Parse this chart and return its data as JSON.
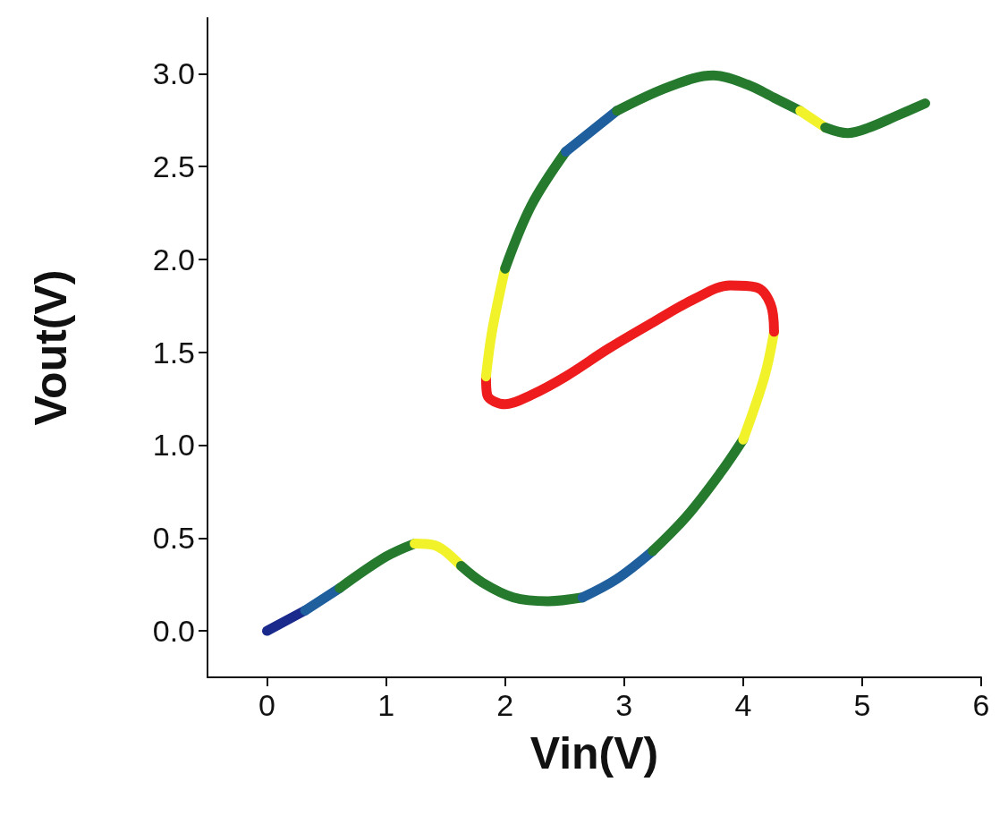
{
  "chart_data": {
    "type": "line",
    "xlabel": "Vin(V)",
    "ylabel": "Vout(V)",
    "xlim": [
      -0.5,
      6
    ],
    "xticks": [
      0,
      1,
      2,
      3,
      4,
      5,
      6
    ],
    "ylim": [
      -0.25,
      3.3
    ],
    "yticks": [
      {
        "value": 0,
        "label": "0.0"
      },
      {
        "value": 0.5,
        "label": "0.5"
      },
      {
        "value": 1,
        "label": "1.0"
      },
      {
        "value": 1.5,
        "label": "1.5"
      },
      {
        "value": 2,
        "label": "2.0"
      },
      {
        "value": 2.5,
        "label": "2.5"
      },
      {
        "value": 3,
        "label": "3.0"
      }
    ],
    "grid": false,
    "marker": "none",
    "line_style": "solid",
    "series": [
      {
        "color": "#1a2a8c",
        "x": [
          0,
          0.32
        ],
        "values": [
          0,
          0.11
        ]
      },
      {
        "color": "#1f5f9e",
        "x": [
          0.32,
          0.61
        ],
        "values": [
          0.11,
          0.23
        ]
      },
      {
        "color": "#257a2e",
        "x": [
          0.61,
          1.0,
          1.24
        ],
        "values": [
          0.23,
          0.4,
          0.47
        ]
      },
      {
        "color": "#f2f22a",
        "x": [
          1.24,
          1.41,
          1.63
        ],
        "values": [
          0.47,
          0.46,
          0.35
        ]
      },
      {
        "color": "#257a2e",
        "x": [
          1.63,
          1.81,
          2.07,
          2.36,
          2.65
        ],
        "values": [
          0.35,
          0.26,
          0.18,
          0.16,
          0.18
        ]
      },
      {
        "color": "#1f5f9e",
        "x": [
          2.65,
          2.94,
          3.24
        ],
        "values": [
          0.18,
          0.28,
          0.43
        ]
      },
      {
        "color": "#257a2e",
        "x": [
          3.24,
          3.53,
          3.82,
          4.0
        ],
        "values": [
          0.43,
          0.62,
          0.86,
          1.03
        ]
      },
      {
        "color": "#f2f22a",
        "x": [
          4.0,
          4.18,
          4.26
        ],
        "values": [
          1.03,
          1.37,
          1.61
        ]
      },
      {
        "color": "#ee1c1c",
        "x": [
          4.26,
          4.23,
          4.11,
          3.89,
          3.6,
          3.24,
          2.87,
          2.51,
          2.22,
          2.0,
          1.85,
          1.84
        ],
        "values": [
          1.61,
          1.76,
          1.85,
          1.86,
          1.79,
          1.66,
          1.52,
          1.37,
          1.27,
          1.22,
          1.27,
          1.37
        ]
      },
      {
        "color": "#f2f22a",
        "x": [
          1.84,
          1.89,
          2.0
        ],
        "values": [
          1.37,
          1.61,
          1.95
        ]
      },
      {
        "color": "#257a2e",
        "x": [
          2.0,
          2.22,
          2.51
        ],
        "values": [
          1.95,
          2.29,
          2.58
        ]
      },
      {
        "color": "#1f5f9e",
        "x": [
          2.51,
          2.94
        ],
        "values": [
          2.58,
          2.8
        ]
      },
      {
        "color": "#257a2e",
        "x": [
          2.94,
          3.38,
          3.75,
          4.04,
          4.26,
          4.48
        ],
        "values": [
          2.8,
          2.93,
          2.99,
          2.94,
          2.87,
          2.8
        ]
      },
      {
        "color": "#f2f22a",
        "x": [
          4.48,
          4.69
        ],
        "values": [
          2.8,
          2.71
        ]
      },
      {
        "color": "#257a2e",
        "x": [
          4.69,
          4.88,
          5.06,
          5.28,
          5.53
        ],
        "values": [
          2.71,
          2.68,
          2.71,
          2.77,
          2.84
        ]
      }
    ]
  }
}
